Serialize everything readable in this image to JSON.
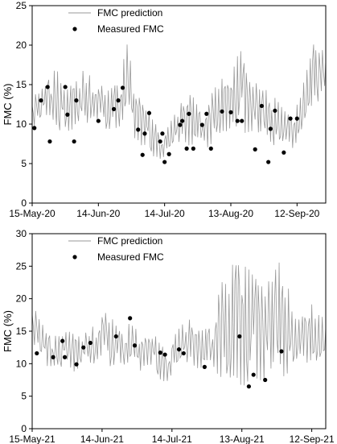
{
  "chart_data": [
    {
      "type": "line",
      "ylabel": "FMC (%)",
      "ylim": [
        0,
        25
      ],
      "yticks": [
        0,
        5,
        10,
        15,
        20,
        25
      ],
      "xlim": [
        "2020-05-15",
        "2020-09-25"
      ],
      "xticks": [
        {
          "date": "2020-05-15",
          "label": "15-May-20"
        },
        {
          "date": "2020-06-14",
          "label": "14-Jun-20"
        },
        {
          "date": "2020-07-14",
          "label": "14-Jul-20"
        },
        {
          "date": "2020-08-13",
          "label": "13-Aug-20"
        },
        {
          "date": "2020-09-12",
          "label": "12-Sep-20"
        }
      ],
      "legend": {
        "position": "top-left",
        "line_label": "FMC prediction",
        "dot_label": "Measured FMC"
      },
      "colors": {
        "line": "#999999",
        "dot": "#000000"
      },
      "prediction": [
        {
          "date": "2020-05-15",
          "low": 10,
          "high": 14
        },
        {
          "date": "2020-05-18",
          "low": 9,
          "high": 14
        },
        {
          "date": "2020-05-22",
          "low": 11,
          "high": 16
        },
        {
          "date": "2020-05-26",
          "low": 10,
          "high": 17
        },
        {
          "date": "2020-05-30",
          "low": 8,
          "high": 14
        },
        {
          "date": "2020-06-03",
          "low": 10,
          "high": 15
        },
        {
          "date": "2020-06-07",
          "low": 9,
          "high": 17
        },
        {
          "date": "2020-06-11",
          "low": 11,
          "high": 16
        },
        {
          "date": "2020-06-14",
          "low": 10,
          "high": 15
        },
        {
          "date": "2020-06-18",
          "low": 9,
          "high": 14
        },
        {
          "date": "2020-06-21",
          "low": 9,
          "high": 15
        },
        {
          "date": "2020-06-24",
          "low": 10,
          "high": 16
        },
        {
          "date": "2020-06-27",
          "low": 11,
          "high": 20
        },
        {
          "date": "2020-07-01",
          "low": 8,
          "high": 15
        },
        {
          "date": "2020-07-05",
          "low": 7,
          "high": 12
        },
        {
          "date": "2020-07-09",
          "low": 6,
          "high": 11
        },
        {
          "date": "2020-07-14",
          "low": 5,
          "high": 9
        },
        {
          "date": "2020-07-18",
          "low": 7,
          "high": 11
        },
        {
          "date": "2020-07-22",
          "low": 8,
          "high": 13
        },
        {
          "date": "2020-07-26",
          "low": 7,
          "high": 14
        },
        {
          "date": "2020-07-30",
          "low": 8,
          "high": 12
        },
        {
          "date": "2020-08-03",
          "low": 7,
          "high": 13
        },
        {
          "date": "2020-08-07",
          "low": 9,
          "high": 16
        },
        {
          "date": "2020-08-11",
          "low": 9,
          "high": 15
        },
        {
          "date": "2020-08-14",
          "low": 10,
          "high": 17
        },
        {
          "date": "2020-08-18",
          "low": 8,
          "high": 21
        },
        {
          "date": "2020-08-22",
          "low": 9,
          "high": 15
        },
        {
          "date": "2020-08-26",
          "low": 8,
          "high": 15
        },
        {
          "date": "2020-08-30",
          "low": 8,
          "high": 14
        },
        {
          "date": "2020-09-03",
          "low": 7,
          "high": 13
        },
        {
          "date": "2020-09-07",
          "low": 7,
          "high": 12
        },
        {
          "date": "2020-09-11",
          "low": 7,
          "high": 11
        },
        {
          "date": "2020-09-14",
          "low": 9,
          "high": 15
        },
        {
          "date": "2020-09-17",
          "low": 11,
          "high": 17
        },
        {
          "date": "2020-09-20",
          "low": 12,
          "high": 23
        },
        {
          "date": "2020-09-25",
          "low": 13,
          "high": 18
        }
      ],
      "measured": [
        {
          "date": "2020-05-16",
          "value": 9.5
        },
        {
          "date": "2020-05-19",
          "value": 13.0
        },
        {
          "date": "2020-05-22",
          "value": 14.7
        },
        {
          "date": "2020-05-23",
          "value": 7.8
        },
        {
          "date": "2020-05-30",
          "value": 14.7
        },
        {
          "date": "2020-05-31",
          "value": 11.2
        },
        {
          "date": "2020-06-03",
          "value": 7.8
        },
        {
          "date": "2020-06-04",
          "value": 13.0
        },
        {
          "date": "2020-06-14",
          "value": 10.4
        },
        {
          "date": "2020-06-21",
          "value": 11.9
        },
        {
          "date": "2020-06-23",
          "value": 13.0
        },
        {
          "date": "2020-06-25",
          "value": 14.6
        },
        {
          "date": "2020-07-02",
          "value": 9.3
        },
        {
          "date": "2020-07-04",
          "value": 6.1
        },
        {
          "date": "2020-07-05",
          "value": 8.8
        },
        {
          "date": "2020-07-07",
          "value": 11.4
        },
        {
          "date": "2020-07-12",
          "value": 7.8
        },
        {
          "date": "2020-07-13",
          "value": 8.8
        },
        {
          "date": "2020-07-14",
          "value": 5.2
        },
        {
          "date": "2020-07-16",
          "value": 6.2
        },
        {
          "date": "2020-07-21",
          "value": 9.9
        },
        {
          "date": "2020-07-22",
          "value": 10.4
        },
        {
          "date": "2020-07-24",
          "value": 6.9
        },
        {
          "date": "2020-07-25",
          "value": 11.3
        },
        {
          "date": "2020-07-27",
          "value": 6.9
        },
        {
          "date": "2020-07-31",
          "value": 9.9
        },
        {
          "date": "2020-08-02",
          "value": 11.3
        },
        {
          "date": "2020-08-04",
          "value": 6.9
        },
        {
          "date": "2020-08-09",
          "value": 11.6
        },
        {
          "date": "2020-08-13",
          "value": 11.5
        },
        {
          "date": "2020-08-16",
          "value": 10.4
        },
        {
          "date": "2020-08-18",
          "value": 10.4
        },
        {
          "date": "2020-08-24",
          "value": 6.8
        },
        {
          "date": "2020-08-27",
          "value": 12.3
        },
        {
          "date": "2020-08-30",
          "value": 5.2
        },
        {
          "date": "2020-08-31",
          "value": 9.4
        },
        {
          "date": "2020-09-02",
          "value": 11.7
        },
        {
          "date": "2020-09-06",
          "value": 6.4
        },
        {
          "date": "2020-09-09",
          "value": 10.7
        },
        {
          "date": "2020-09-12",
          "value": 10.7
        }
      ]
    },
    {
      "type": "line",
      "ylabel": "FMC (%)",
      "ylim": [
        0,
        30
      ],
      "yticks": [
        0,
        5,
        10,
        15,
        20,
        25,
        30
      ],
      "xlim": [
        "2021-05-15",
        "2021-09-18"
      ],
      "xticks": [
        {
          "date": "2021-05-15",
          "label": "15-May-21"
        },
        {
          "date": "2021-06-14",
          "label": "14-Jun-21"
        },
        {
          "date": "2021-07-14",
          "label": "14-Jul-21"
        },
        {
          "date": "2021-08-13",
          "label": "13-Aug-21"
        },
        {
          "date": "2021-09-12",
          "label": "12-Sep-21"
        }
      ],
      "legend": {
        "position": "top-left",
        "line_label": "FMC prediction",
        "dot_label": "Measured FMC"
      },
      "colors": {
        "line": "#999999",
        "dot": "#000000"
      },
      "prediction": [
        {
          "date": "2021-05-15",
          "low": 14,
          "high": 20
        },
        {
          "date": "2021-05-18",
          "low": 10,
          "high": 17
        },
        {
          "date": "2021-05-22",
          "low": 9,
          "high": 15
        },
        {
          "date": "2021-05-26",
          "low": 10,
          "high": 14
        },
        {
          "date": "2021-05-30",
          "low": 9,
          "high": 15
        },
        {
          "date": "2021-06-03",
          "low": 9,
          "high": 14
        },
        {
          "date": "2021-06-07",
          "low": 10,
          "high": 15
        },
        {
          "date": "2021-06-11",
          "low": 10,
          "high": 16
        },
        {
          "date": "2021-06-14",
          "low": 11,
          "high": 18
        },
        {
          "date": "2021-06-18",
          "low": 9,
          "high": 17
        },
        {
          "date": "2021-06-22",
          "low": 10,
          "high": 15
        },
        {
          "date": "2021-06-26",
          "low": 10,
          "high": 16
        },
        {
          "date": "2021-06-30",
          "low": 9,
          "high": 15
        },
        {
          "date": "2021-07-04",
          "low": 10,
          "high": 14
        },
        {
          "date": "2021-07-08",
          "low": 8,
          "high": 14
        },
        {
          "date": "2021-07-11",
          "low": 7,
          "high": 13
        },
        {
          "date": "2021-07-14",
          "low": 7,
          "high": 14
        },
        {
          "date": "2021-07-18",
          "low": 10,
          "high": 16
        },
        {
          "date": "2021-07-22",
          "low": 10,
          "high": 17
        },
        {
          "date": "2021-07-26",
          "low": 9,
          "high": 15
        },
        {
          "date": "2021-07-30",
          "low": 10,
          "high": 16
        },
        {
          "date": "2021-08-03",
          "low": 8,
          "high": 22
        },
        {
          "date": "2021-08-07",
          "low": 8,
          "high": 24
        },
        {
          "date": "2021-08-11",
          "low": 7,
          "high": 26
        },
        {
          "date": "2021-08-15",
          "low": 6,
          "high": 25
        },
        {
          "date": "2021-08-19",
          "low": 7,
          "high": 26
        },
        {
          "date": "2021-08-23",
          "low": 7,
          "high": 21
        },
        {
          "date": "2021-08-27",
          "low": 8,
          "high": 25
        },
        {
          "date": "2021-08-31",
          "low": 8,
          "high": 26
        },
        {
          "date": "2021-09-04",
          "low": 9,
          "high": 17
        },
        {
          "date": "2021-09-08",
          "low": 10,
          "high": 18
        },
        {
          "date": "2021-09-12",
          "low": 10,
          "high": 19
        },
        {
          "date": "2021-09-15",
          "low": 10,
          "high": 18
        },
        {
          "date": "2021-09-18",
          "low": 11,
          "high": 16
        }
      ],
      "measured": [
        {
          "date": "2021-05-17",
          "value": 11.6
        },
        {
          "date": "2021-05-24",
          "value": 11.0
        },
        {
          "date": "2021-05-28",
          "value": 13.5
        },
        {
          "date": "2021-05-29",
          "value": 11.0
        },
        {
          "date": "2021-06-03",
          "value": 9.9
        },
        {
          "date": "2021-06-06",
          "value": 12.5
        },
        {
          "date": "2021-06-09",
          "value": 13.2
        },
        {
          "date": "2021-06-20",
          "value": 14.2
        },
        {
          "date": "2021-06-26",
          "value": 17.0
        },
        {
          "date": "2021-06-28",
          "value": 12.8
        },
        {
          "date": "2021-07-09",
          "value": 11.7
        },
        {
          "date": "2021-07-11",
          "value": 11.4
        },
        {
          "date": "2021-07-17",
          "value": 12.2
        },
        {
          "date": "2021-07-19",
          "value": 11.6
        },
        {
          "date": "2021-07-28",
          "value": 9.5
        },
        {
          "date": "2021-08-12",
          "value": 14.2
        },
        {
          "date": "2021-08-16",
          "value": 6.5
        },
        {
          "date": "2021-08-18",
          "value": 8.3
        },
        {
          "date": "2021-08-23",
          "value": 7.5
        },
        {
          "date": "2021-08-30",
          "value": 11.9
        }
      ]
    }
  ]
}
